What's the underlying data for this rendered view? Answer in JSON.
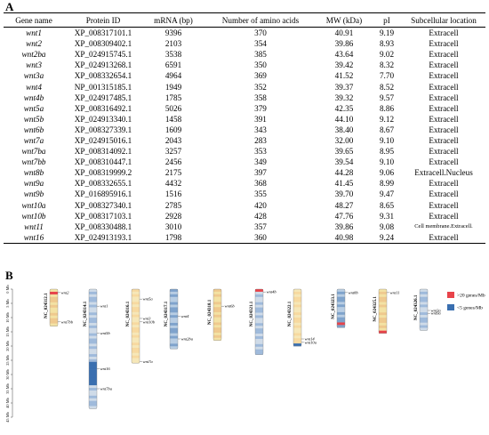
{
  "panel_a_label": "A",
  "panel_b_label": "B",
  "table": {
    "headers": [
      "Gene name",
      "Protein ID",
      "mRNA (bp)",
      "Number of amino acids",
      "MW (kDa)",
      "pI",
      "Subcellular location"
    ],
    "rows": [
      [
        "wnt1",
        "XP_008317101.1",
        "9396",
        "370",
        "40.91",
        "9.19",
        "Extracell"
      ],
      [
        "wnt2",
        "XP_008309402.1",
        "2103",
        "354",
        "39.86",
        "8.93",
        "Extracell"
      ],
      [
        "wnt2ba",
        "XP_024915745.1",
        "3538",
        "385",
        "43.64",
        "9.02",
        "Extracell"
      ],
      [
        "wnt3",
        "XP_024913268.1",
        "6591",
        "350",
        "39.42",
        "8.32",
        "Extracell"
      ],
      [
        "wnt3a",
        "XP_008332654.1",
        "4964",
        "369",
        "41.52",
        "7.70",
        "Extracell"
      ],
      [
        "wnt4",
        "NP_001315185.1",
        "1949",
        "352",
        "39.37",
        "8.52",
        "Extracell"
      ],
      [
        "wnt4b",
        "XP_024917485.1",
        "1785",
        "358",
        "39.32",
        "9.57",
        "Extracell"
      ],
      [
        "wnt5a",
        "XP_008316492.1",
        "5026",
        "379",
        "42.35",
        "8.86",
        "Extracell"
      ],
      [
        "wnt5b",
        "XP_024913340.1",
        "1458",
        "391",
        "44.10",
        "9.12",
        "Extracell"
      ],
      [
        "wnt6b",
        "XP_008327339.1",
        "1609",
        "343",
        "38.40",
        "8.67",
        "Extracell"
      ],
      [
        "wnt7a",
        "XP_024915016.1",
        "2043",
        "283",
        "32.00",
        "9.10",
        "Extracell"
      ],
      [
        "wnt7ba",
        "XP_008314092.1",
        "3257",
        "353",
        "39.65",
        "8.95",
        "Extracell"
      ],
      [
        "wnt7bb",
        "XP_008310447.1",
        "2456",
        "349",
        "39.54",
        "9.10",
        "Extracell"
      ],
      [
        "wnt8b",
        "XP_008319999.2",
        "2175",
        "397",
        "44.28",
        "9.06",
        "Extracell.Nucleus"
      ],
      [
        "wnt9a",
        "XP_008332655.1",
        "4432",
        "368",
        "41.45",
        "8.99",
        "Extracell"
      ],
      [
        "wnt9b",
        "XP_016895916.1",
        "1516",
        "355",
        "39.70",
        "9.47",
        "Extracell"
      ],
      [
        "wnt10a",
        "XP_008327340.1",
        "2785",
        "420",
        "48.27",
        "8.65",
        "Extracell"
      ],
      [
        "wnt10b",
        "XP_008317103.1",
        "2928",
        "428",
        "47.76",
        "9.31",
        "Extracell"
      ],
      [
        "wnt11",
        "XP_008330488.1",
        "3010",
        "357",
        "39.86",
        "9.08",
        "Cell membrane.Extracell."
      ],
      [
        "wnt16",
        "XP_024913193.1",
        "1798",
        "360",
        "40.98",
        "9.24",
        "Extracell"
      ]
    ]
  },
  "legend": [
    {
      "label": ">20 genes/Mb",
      "color": "#e8434a"
    },
    {
      "label": "<5 genes/Mb",
      "color": "#3a6fb0"
    }
  ],
  "axis_ticks": [
    "0 Mb",
    "5 Mb",
    "10 Mb",
    "15 Mb",
    "20 Mb",
    "25 Mb",
    "30 Mb",
    "35 Mb",
    "40 Mb",
    "45 Mb"
  ],
  "chromosomes": [
    {
      "name": "NC_024312.1",
      "length_mb": 13,
      "genes": [
        {
          "name": "wnt2",
          "pos_mb": 1.2
        },
        {
          "name": "wnt7bb",
          "pos_mb": 11.5
        }
      ]
    },
    {
      "name": "NC_024314.1",
      "length_mb": 42,
      "genes": [
        {
          "name": "wnt1",
          "pos_mb": 6
        },
        {
          "name": "wnt5b",
          "pos_mb": 15.5
        },
        {
          "name": "wnt16",
          "pos_mb": 28
        },
        {
          "name": "wnt7ba",
          "pos_mb": 35
        }
      ]
    },
    {
      "name": "NC_024316.1",
      "length_mb": 26,
      "genes": [
        {
          "name": "wnt5a",
          "pos_mb": 3.5
        },
        {
          "name": "wnt3",
          "pos_mb": 10.3
        },
        {
          "name": "wnt10b",
          "pos_mb": 11.5
        },
        {
          "name": "wnt7a",
          "pos_mb": 25.5
        }
      ]
    },
    {
      "name": "NC_024317.1",
      "length_mb": 21,
      "genes": [
        {
          "name": "wnt4",
          "pos_mb": 9.5
        },
        {
          "name": "wnt2ba",
          "pos_mb": 17.5
        }
      ]
    },
    {
      "name": "NC_024318.1",
      "length_mb": 18,
      "genes": [
        {
          "name": "wnt6b",
          "pos_mb": 6
        }
      ]
    },
    {
      "name": "NC_024321.1",
      "length_mb": 23,
      "genes": [
        {
          "name": "wnt4b",
          "pos_mb": 1
        }
      ]
    },
    {
      "name": "NC_024322.1",
      "length_mb": 20,
      "genes": [
        {
          "name": "wnt14",
          "pos_mb": 17.5
        },
        {
          "name": "wnt10a",
          "pos_mb": 18.7
        }
      ]
    },
    {
      "name": "NC_024323.1",
      "length_mb": 13.5,
      "genes": [
        {
          "name": "wnt8b",
          "pos_mb": 1.2
        }
      ]
    },
    {
      "name": "NC_024325.1",
      "length_mb": 15.5,
      "genes": [
        {
          "name": "wnt11",
          "pos_mb": 1.2
        }
      ]
    },
    {
      "name": "NC_024326.1",
      "length_mb": 14.5,
      "genes": [
        {
          "name": "wnt3a",
          "pos_mb": 7.5
        },
        {
          "name": "wnt9a",
          "pos_mb": 8.5
        }
      ]
    }
  ]
}
